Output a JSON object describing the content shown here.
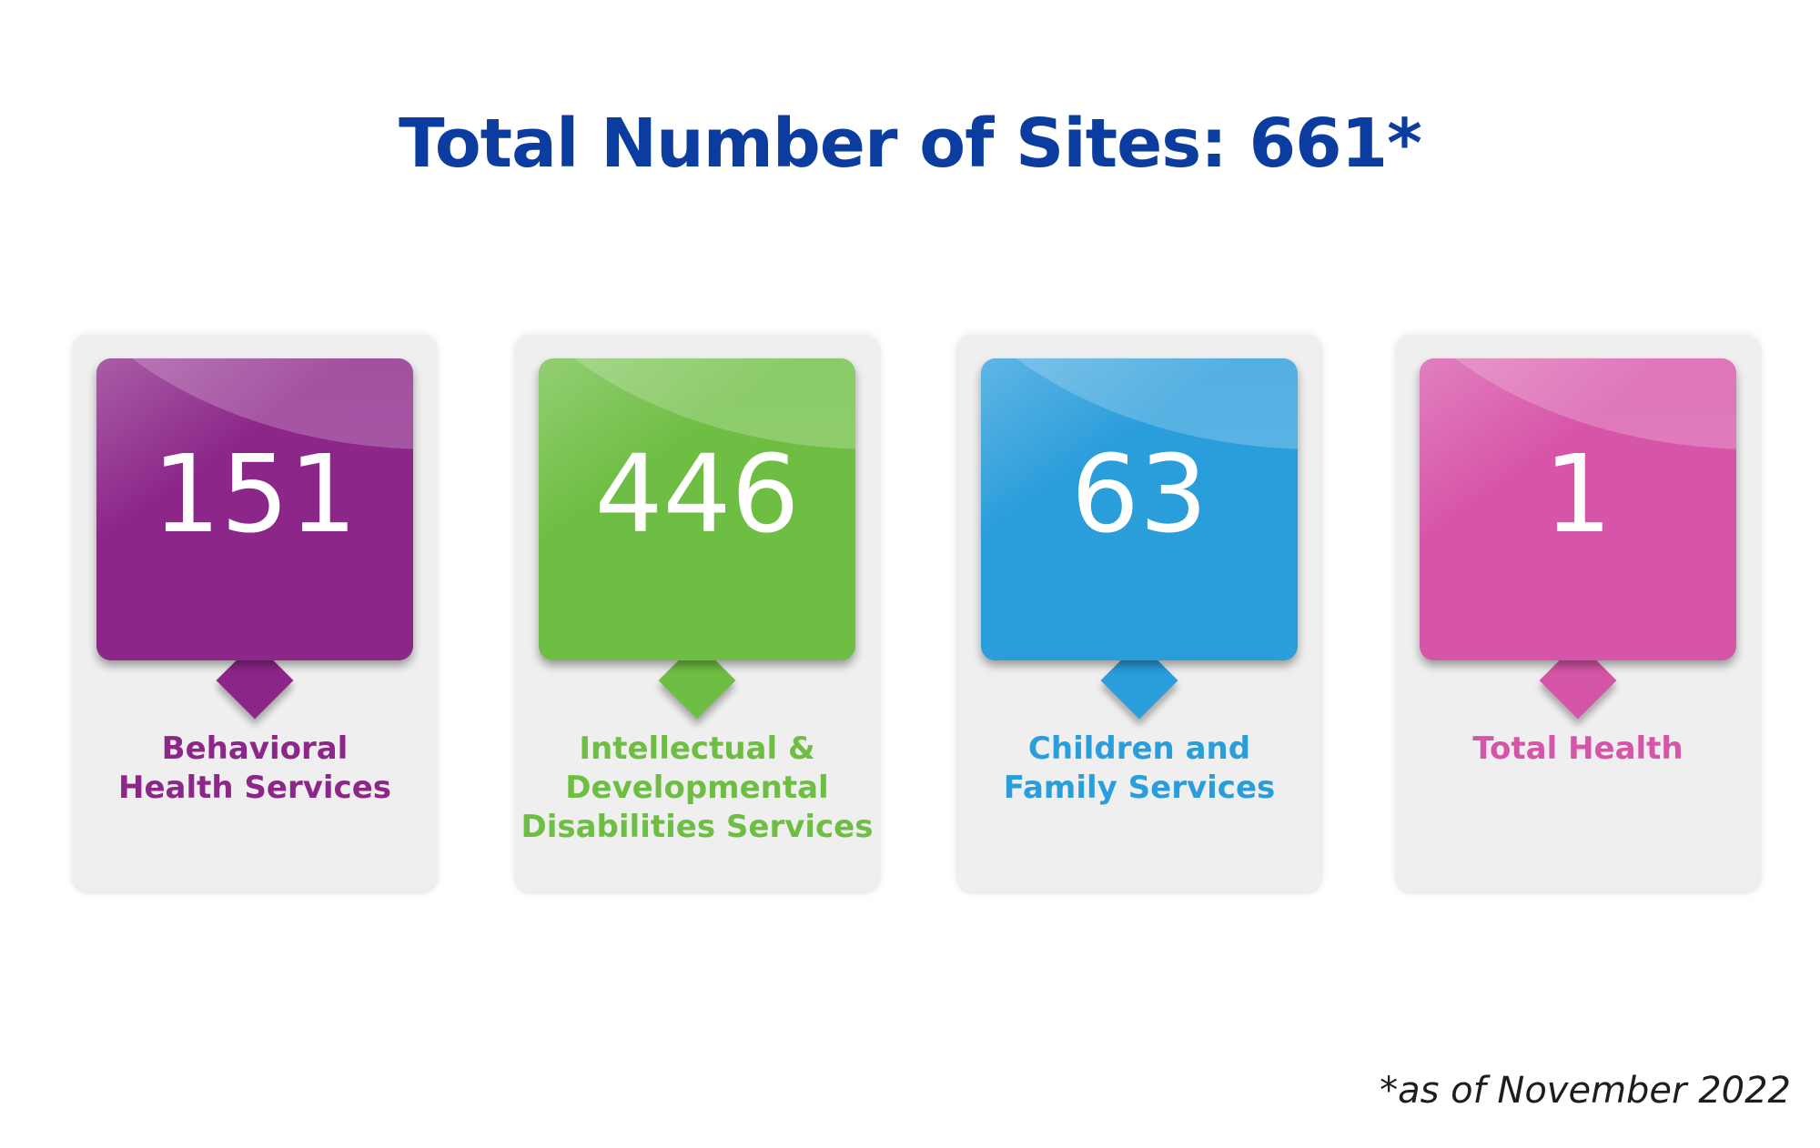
{
  "headline": "Total Number of Sites: 661*",
  "cards": [
    {
      "count": "151",
      "label": "Behavioral\nHealth Services",
      "color": "#8c2789",
      "label_color": "#8c2789"
    },
    {
      "count": "446",
      "label": "Intellectual &\nDevelopmental\nDisabilities Services",
      "color": "#6fbe44",
      "label_color": "#6fbe44"
    },
    {
      "count": "63",
      "label": "Children and\nFamily Services",
      "color": "#2a9ddb",
      "label_color": "#2a9ddb"
    },
    {
      "count": "1",
      "label": "Total Health",
      "color": "#d755a9",
      "label_color": "#d755a9"
    }
  ],
  "footnote": "*as of November 2022"
}
